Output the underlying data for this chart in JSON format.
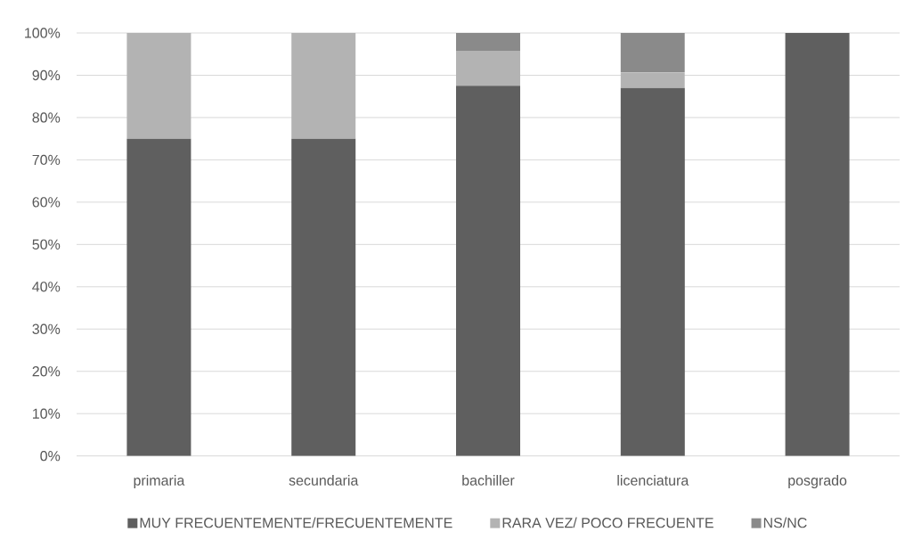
{
  "chart_data": {
    "type": "bar",
    "stacked": true,
    "categories": [
      "primaria",
      "secundaria",
      "bachiller",
      "licenciatura",
      "posgrado"
    ],
    "series": [
      {
        "name": "MUY FRECUENTEMENTE/FRECUENTEMENTE",
        "color": "#5f5f5f",
        "values": [
          75,
          75,
          87.5,
          87,
          100
        ]
      },
      {
        "name": "RARA VEZ/ POCO FRECUENTE",
        "color": "#b3b3b3",
        "values": [
          25,
          25,
          8.3,
          3.7,
          0
        ]
      },
      {
        "name": "NS/NC",
        "color": "#8a8a8a",
        "values": [
          0,
          0,
          4.2,
          9.3,
          0
        ]
      }
    ],
    "ylim": [
      0,
      100
    ],
    "yticks": [
      {
        "value": 0,
        "label": "0%"
      },
      {
        "value": 10,
        "label": "10%"
      },
      {
        "value": 20,
        "label": "20%"
      },
      {
        "value": 30,
        "label": "30%"
      },
      {
        "value": 40,
        "label": "40%"
      },
      {
        "value": 50,
        "label": "50%"
      },
      {
        "value": 60,
        "label": "60%"
      },
      {
        "value": 70,
        "label": "70%"
      },
      {
        "value": 80,
        "label": "80%"
      },
      {
        "value": 90,
        "label": "90%"
      },
      {
        "value": 100,
        "label": "100%"
      }
    ],
    "grid": "y",
    "legend": "bottom"
  }
}
